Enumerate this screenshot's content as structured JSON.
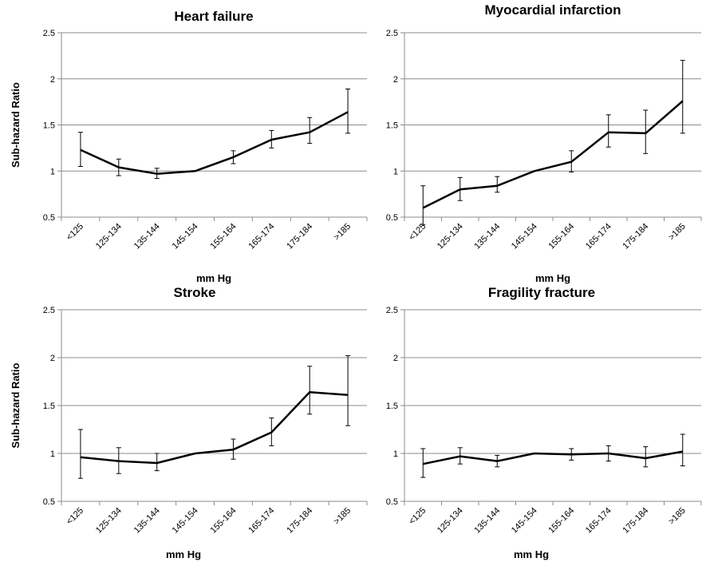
{
  "chart_data": [
    {
      "type": "line",
      "title": "Heart failure",
      "xlabel": "mm Hg",
      "ylabel": "Sub-hazard Ratio",
      "ylim": [
        0.5,
        2.5
      ],
      "yticks": [
        "0.5",
        "1",
        "1.5",
        "2",
        "2.5"
      ],
      "grid": true,
      "categories": [
        "<125",
        "125-134",
        "135-144",
        "145-154",
        "155-164",
        "165-174",
        "175-184",
        ">185"
      ],
      "values": [
        1.23,
        1.04,
        0.97,
        1.0,
        1.15,
        1.34,
        1.42,
        1.64
      ],
      "lower": [
        1.05,
        0.95,
        0.92,
        1.0,
        1.08,
        1.25,
        1.3,
        1.41
      ],
      "upper": [
        1.42,
        1.13,
        1.03,
        1.0,
        1.22,
        1.44,
        1.58,
        1.89
      ]
    },
    {
      "type": "line",
      "title": "Myocardial infarction",
      "xlabel": "mm Hg",
      "ylabel": "",
      "ylim": [
        0.5,
        2.5
      ],
      "yticks": [
        "0.5",
        "1",
        "1.5",
        "2",
        "2.5"
      ],
      "grid": true,
      "categories": [
        "<125",
        "125-134",
        "135-144",
        "145-154",
        "155-164",
        "165-174",
        "175-184",
        ">185"
      ],
      "values": [
        0.6,
        0.8,
        0.84,
        1.0,
        1.1,
        1.42,
        1.41,
        1.76
      ],
      "lower": [
        0.42,
        0.68,
        0.77,
        1.0,
        0.99,
        1.26,
        1.19,
        1.41
      ],
      "upper": [
        0.84,
        0.93,
        0.94,
        1.0,
        1.22,
        1.61,
        1.66,
        2.2
      ]
    },
    {
      "type": "line",
      "title": "Stroke",
      "xlabel": "mm Hg",
      "ylabel": "Sub-hazard Ratio",
      "ylim": [
        0.5,
        2.5
      ],
      "yticks": [
        "0.5",
        "1",
        "1.5",
        "2",
        "2.5"
      ],
      "grid": true,
      "categories": [
        "<125",
        "125-134",
        "135-144",
        "145-154",
        "155-164",
        "165-174",
        "175-184",
        ">185"
      ],
      "values": [
        0.96,
        0.92,
        0.9,
        1.0,
        1.04,
        1.22,
        1.64,
        1.61
      ],
      "lower": [
        0.74,
        0.79,
        0.82,
        1.0,
        0.94,
        1.08,
        1.41,
        1.29
      ],
      "upper": [
        1.25,
        1.06,
        1.0,
        1.0,
        1.15,
        1.37,
        1.91,
        2.02
      ]
    },
    {
      "type": "line",
      "title": "Fragility fracture",
      "xlabel": "mm Hg",
      "ylabel": "",
      "ylim": [
        0.5,
        2.5
      ],
      "yticks": [
        "0.5",
        "1",
        "1.5",
        "2",
        "2.5"
      ],
      "grid": true,
      "categories": [
        "<125",
        "125-134",
        "135-144",
        "145-154",
        "155-164",
        "165-174",
        "175-184",
        ">185"
      ],
      "values": [
        0.89,
        0.97,
        0.92,
        1.0,
        0.99,
        1.0,
        0.95,
        1.02
      ],
      "lower": [
        0.75,
        0.89,
        0.86,
        1.0,
        0.93,
        0.92,
        0.86,
        0.87
      ],
      "upper": [
        1.05,
        1.06,
        0.98,
        1.0,
        1.05,
        1.08,
        1.07,
        1.2
      ]
    }
  ]
}
